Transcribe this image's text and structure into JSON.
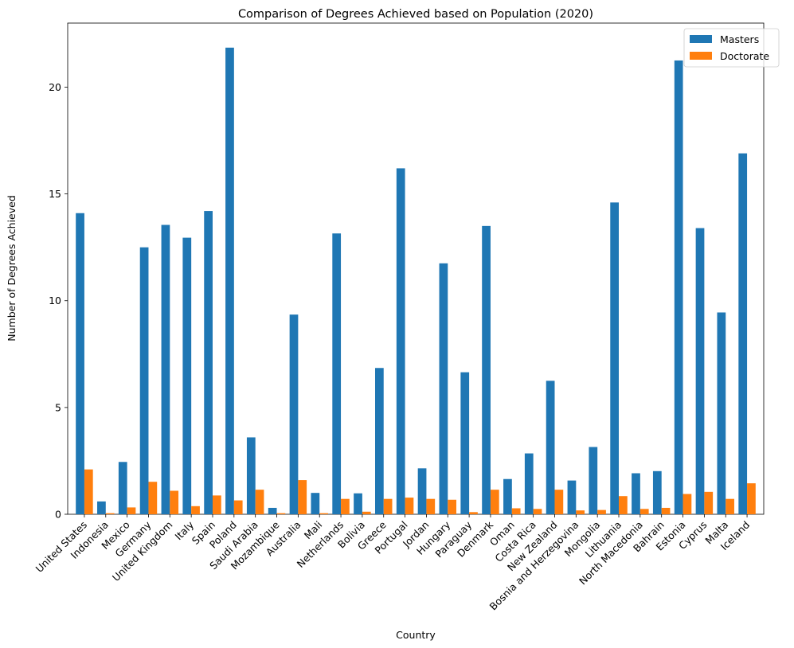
{
  "chart_data": {
    "type": "bar",
    "title": "Comparison of Degrees Achieved based on Population (2020)",
    "xlabel": "Country",
    "ylabel": "Number of Degrees Achieved",
    "ylim": [
      0,
      23
    ],
    "yticks": [
      0,
      5,
      10,
      15,
      20
    ],
    "legend_position": "top-right",
    "grid": false,
    "categories": [
      "United States",
      "Indonesia",
      "Mexico",
      "Germany",
      "United Kingdom",
      "Italy",
      "Spain",
      "Poland",
      "Saudi Arabia",
      "Mozambique",
      "Australia",
      "Mali",
      "Netherlands",
      "Bolivia",
      "Greece",
      "Portugal",
      "Jordan",
      "Hungary",
      "Paraguay",
      "Denmark",
      "Oman",
      "Costa Rica",
      "New Zealand",
      "Bosnia and Herzegovina",
      "Mongolia",
      "Lithuania",
      "North Macedonia",
      "Bahrain",
      "Estonia",
      "Cyprus",
      "Malta",
      "Iceland"
    ],
    "series": [
      {
        "name": "Masters",
        "color": "#1f77b4",
        "values": [
          14.1,
          0.6,
          2.45,
          12.5,
          13.55,
          12.95,
          14.2,
          21.85,
          3.6,
          0.3,
          9.35,
          1.0,
          13.15,
          0.98,
          6.85,
          16.2,
          2.15,
          11.75,
          6.65,
          13.5,
          1.65,
          2.85,
          6.25,
          1.58,
          3.15,
          14.6,
          1.92,
          2.02,
          21.25,
          13.4,
          9.45,
          16.9
        ]
      },
      {
        "name": "Doctorate",
        "color": "#ff7f0e",
        "values": [
          2.1,
          0.05,
          0.32,
          1.52,
          1.1,
          0.38,
          0.88,
          0.65,
          1.15,
          0.05,
          1.6,
          0.05,
          0.72,
          0.12,
          0.72,
          0.78,
          0.72,
          0.68,
          0.1,
          1.15,
          0.28,
          0.25,
          1.15,
          0.18,
          0.2,
          0.85,
          0.25,
          0.3,
          0.95,
          1.05,
          0.72,
          1.45
        ]
      }
    ]
  }
}
